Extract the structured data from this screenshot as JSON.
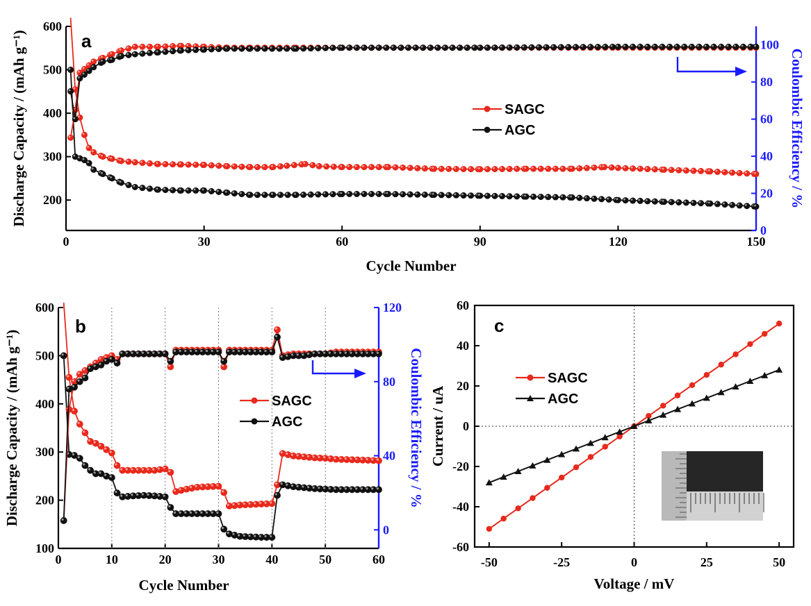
{
  "chart_data": [
    {
      "panel": "a",
      "type": "scatter",
      "xlabel": "Cycle Number",
      "ylabel": "Discharge Capacity / (mAh g⁻¹)",
      "y2label": "Coulombic Efficiency / %",
      "xlim": [
        0,
        150
      ],
      "ylim": [
        130,
        600
      ],
      "y2lim": [
        0,
        110
      ],
      "xticks": [
        0,
        30,
        60,
        90,
        120,
        150
      ],
      "yticks": [
        200,
        300,
        400,
        500,
        600
      ],
      "y2ticks": [
        0,
        20,
        40,
        60,
        80,
        100
      ],
      "legend": [
        "SAGC",
        "AGC"
      ],
      "legend_position": "center-right",
      "series": [
        {
          "name": "SAGC",
          "metric": "capacity",
          "axis": "left",
          "color": "#e8291c",
          "x": [
            1,
            2,
            3,
            4,
            5,
            6,
            8,
            10,
            12,
            15,
            20,
            25,
            30,
            35,
            40,
            45,
            48,
            52,
            55,
            60,
            70,
            80,
            90,
            100,
            110,
            117,
            120,
            130,
            140,
            150
          ],
          "y": [
            620,
            455,
            390,
            350,
            320,
            310,
            300,
            295,
            290,
            287,
            283,
            282,
            281,
            278,
            276,
            276,
            279,
            283,
            278,
            276,
            276,
            272,
            271,
            272,
            272,
            276,
            274,
            270,
            266,
            260
          ]
        },
        {
          "name": "AGC",
          "metric": "capacity",
          "axis": "left",
          "color": "#111111",
          "x": [
            1,
            2,
            3,
            4,
            5,
            6,
            8,
            10,
            12,
            15,
            20,
            25,
            30,
            35,
            40,
            45,
            50,
            60,
            70,
            80,
            90,
            100,
            110,
            120,
            130,
            140,
            150
          ],
          "y": [
            500,
            300,
            296,
            292,
            285,
            270,
            260,
            250,
            240,
            230,
            224,
            222,
            222,
            217,
            212,
            212,
            212,
            214,
            214,
            212,
            210,
            208,
            206,
            200,
            196,
            192,
            185
          ]
        },
        {
          "name": "SAGC",
          "metric": "coulombic_efficiency",
          "axis": "right",
          "color": "#e8291c",
          "x": [
            1,
            2,
            3,
            4,
            5,
            6,
            8,
            10,
            12,
            15,
            20,
            25,
            30,
            35,
            40,
            50,
            60,
            90,
            120,
            150
          ],
          "y": [
            50,
            65,
            85,
            87,
            89,
            91,
            93,
            95,
            97,
            99,
            99,
            99.5,
            99,
            98.5,
            98.5,
            98.5,
            98.5,
            98.5,
            98.5,
            98.5
          ]
        },
        {
          "name": "AGC",
          "metric": "coulombic_efficiency",
          "axis": "right",
          "color": "#111111",
          "x": [
            1,
            2,
            3,
            4,
            5,
            6,
            8,
            10,
            12,
            15,
            20,
            25,
            30,
            35,
            40,
            50,
            60,
            90,
            120,
            150
          ],
          "y": [
            75,
            60,
            82,
            84,
            86,
            88,
            91,
            92,
            94,
            95,
            96,
            97,
            97.5,
            98,
            98,
            98,
            98.5,
            98.5,
            99,
            99
          ]
        }
      ]
    },
    {
      "panel": "b",
      "type": "scatter",
      "xlabel": "Cycle Number",
      "ylabel": "Discharge Capacity / (mAh g⁻¹)",
      "y2label": "Coulombic Efficiency / %",
      "xlim": [
        0,
        60
      ],
      "ylim": [
        100,
        600
      ],
      "y2lim": [
        -10,
        120
      ],
      "xticks": [
        0,
        10,
        20,
        30,
        40,
        50,
        60
      ],
      "yticks": [
        100,
        200,
        300,
        400,
        500,
        600
      ],
      "y2ticks": [
        0,
        40,
        80,
        120
      ],
      "legend": [
        "SAGC",
        "AGC"
      ],
      "legend_position": "center-right",
      "series": [
        {
          "name": "SAGC",
          "metric": "capacity",
          "axis": "left",
          "color": "#e8291c",
          "x": [
            1,
            2,
            3,
            4,
            5,
            6,
            7,
            8,
            9,
            10,
            11,
            12,
            14,
            16,
            18,
            20,
            21,
            22,
            24,
            26,
            28,
            30,
            31,
            32,
            34,
            36,
            38,
            40,
            41,
            42,
            44,
            46,
            48,
            50,
            52,
            55,
            58,
            60
          ],
          "y": [
            610,
            455,
            385,
            358,
            340,
            322,
            318,
            312,
            305,
            298,
            272,
            262,
            262,
            262,
            262,
            265,
            258,
            218,
            223,
            227,
            228,
            229,
            216,
            188,
            190,
            191,
            192,
            193,
            232,
            297,
            292,
            290,
            288,
            287,
            285,
            284,
            283,
            282
          ]
        },
        {
          "name": "AGC",
          "metric": "capacity",
          "axis": "left",
          "color": "#111111",
          "x": [
            1,
            2,
            3,
            4,
            5,
            6,
            7,
            8,
            9,
            10,
            11,
            12,
            14,
            16,
            18,
            20,
            21,
            22,
            24,
            26,
            28,
            30,
            31,
            32,
            34,
            36,
            38,
            40,
            41,
            42,
            44,
            46,
            48,
            50,
            52,
            55,
            58,
            60
          ],
          "y": [
            500,
            295,
            293,
            287,
            272,
            262,
            255,
            255,
            250,
            247,
            215,
            207,
            209,
            210,
            209,
            207,
            185,
            172,
            172,
            172,
            172,
            172,
            140,
            130,
            125,
            124,
            123,
            123,
            210,
            232,
            228,
            226,
            224,
            223,
            222,
            222,
            222,
            222
          ]
        },
        {
          "name": "SAGC",
          "metric": "coulombic_efficiency",
          "axis": "right",
          "color": "#e8291c",
          "x": [
            1,
            2,
            3,
            4,
            5,
            6,
            7,
            8,
            9,
            10,
            11,
            12,
            14,
            16,
            18,
            20,
            21,
            22,
            24,
            26,
            28,
            30,
            31,
            32,
            34,
            36,
            38,
            40,
            41,
            42,
            44,
            46,
            48,
            50,
            52,
            55,
            58,
            60
          ],
          "y": [
            5,
            65,
            80,
            84,
            86,
            88,
            90,
            92,
            93,
            94,
            92,
            95,
            95,
            95,
            95,
            95,
            88,
            97,
            97,
            97,
            97,
            97,
            88,
            97,
            97,
            97,
            97,
            97,
            108,
            94,
            95,
            95,
            95,
            95,
            96,
            96,
            96,
            96
          ]
        },
        {
          "name": "AGC",
          "metric": "coulombic_efficiency",
          "axis": "right",
          "color": "#111111",
          "x": [
            1,
            2,
            3,
            4,
            5,
            6,
            7,
            8,
            9,
            10,
            11,
            12,
            14,
            16,
            18,
            20,
            21,
            22,
            24,
            26,
            28,
            30,
            31,
            32,
            34,
            36,
            38,
            40,
            41,
            42,
            44,
            46,
            48,
            50,
            52,
            55,
            58,
            60
          ],
          "y": [
            5,
            76,
            77,
            80,
            82,
            87,
            88,
            89,
            91,
            92,
            90,
            95,
            95,
            95,
            95,
            95,
            91,
            96,
            96,
            96,
            96,
            96,
            91,
            96,
            96,
            96,
            96,
            96,
            104,
            93,
            94,
            94,
            95,
            95,
            95,
            95,
            95,
            95
          ]
        }
      ]
    },
    {
      "panel": "c",
      "type": "line",
      "xlabel": "Voltage / mV",
      "ylabel": "Current / uA",
      "xlim": [
        -55,
        55
      ],
      "ylim": [
        -60,
        60
      ],
      "xticks": [
        -50,
        -25,
        0,
        25,
        50
      ],
      "yticks": [
        -60,
        -40,
        -20,
        0,
        20,
        40,
        60
      ],
      "legend": [
        "SAGC",
        "AGC"
      ],
      "legend_position": "center-left",
      "has_inset_photo": true,
      "series": [
        {
          "name": "SAGC",
          "color": "#e8291c",
          "marker": "circle",
          "x": [
            -50,
            -45,
            -40,
            -35,
            -30,
            -25,
            -20,
            -15,
            -10,
            -5,
            0,
            5,
            10,
            15,
            20,
            25,
            30,
            35,
            40,
            45,
            50
          ],
          "y": [
            -51,
            -45.9,
            -40.8,
            -35.7,
            -30.6,
            -25.5,
            -20.4,
            -15.3,
            -10.2,
            -5.1,
            0,
            5.1,
            10.2,
            15.3,
            20.4,
            25.5,
            30.6,
            35.7,
            40.8,
            45.9,
            51
          ]
        },
        {
          "name": "AGC",
          "color": "#111111",
          "marker": "triangle",
          "x": [
            -50,
            -45,
            -40,
            -35,
            -30,
            -25,
            -20,
            -15,
            -10,
            -5,
            0,
            5,
            10,
            15,
            20,
            25,
            30,
            35,
            40,
            45,
            50
          ],
          "y": [
            -28,
            -25.2,
            -22.4,
            -19.6,
            -16.8,
            -14,
            -11.2,
            -8.4,
            -5.6,
            -2.8,
            0,
            2.8,
            5.6,
            8.4,
            11.2,
            14,
            16.8,
            19.6,
            22.4,
            25.2,
            28
          ]
        }
      ]
    }
  ]
}
